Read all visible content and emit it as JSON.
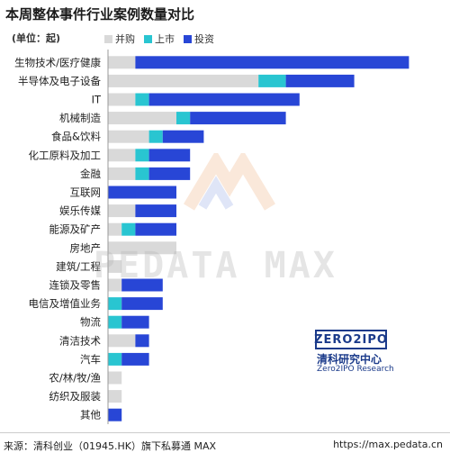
{
  "title": "本周整体事件行业案例数量对比",
  "unit_label": "(单位：起)",
  "colors": {
    "并购": "#d9d9d9",
    "上市": "#29c5d1",
    "投资": "#2846d6"
  },
  "chart_data": {
    "type": "bar",
    "orientation": "horizontal",
    "stacked": true,
    "title": "本周整体事件行业案例数量对比",
    "categories": [
      "生物技术/医疗健康",
      "半导体及电子设备",
      "IT",
      "机械制造",
      "食品&饮料",
      "化工原料及加工",
      "金融",
      "互联网",
      "娱乐传媒",
      "能源及矿产",
      "房地产",
      "建筑/工程",
      "连锁及零售",
      "电信及增值业务",
      "物流",
      "清洁技术",
      "汽车",
      "农/林/牧/渔",
      "纺织及服装",
      "其他"
    ],
    "series": [
      {
        "name": "并购",
        "values": [
          2,
          11,
          2,
          5,
          3,
          2,
          2,
          0,
          2,
          1,
          5,
          1,
          1,
          0,
          0,
          2,
          0,
          1,
          1,
          0
        ]
      },
      {
        "name": "上市",
        "values": [
          0,
          2,
          1,
          1,
          1,
          1,
          1,
          0,
          0,
          1,
          0,
          0,
          0,
          1,
          1,
          0,
          1,
          0,
          0,
          0
        ]
      },
      {
        "name": "投资",
        "values": [
          20,
          5,
          11,
          7,
          3,
          3,
          3,
          5,
          3,
          3,
          0,
          0,
          3,
          3,
          2,
          1,
          2,
          0,
          0,
          1
        ]
      }
    ],
    "legend_position": "top-left",
    "grid": false
  },
  "watermark_text": "PEDATA MAX",
  "logo": {
    "text": "ZERO2IPO",
    "cn": "清科研究中心",
    "en": "Zero2IPO Research"
  },
  "footer": {
    "source": "来源：清科创业（01945.HK）旗下私募通 MAX",
    "url": "https://max.pedata.cn"
  }
}
